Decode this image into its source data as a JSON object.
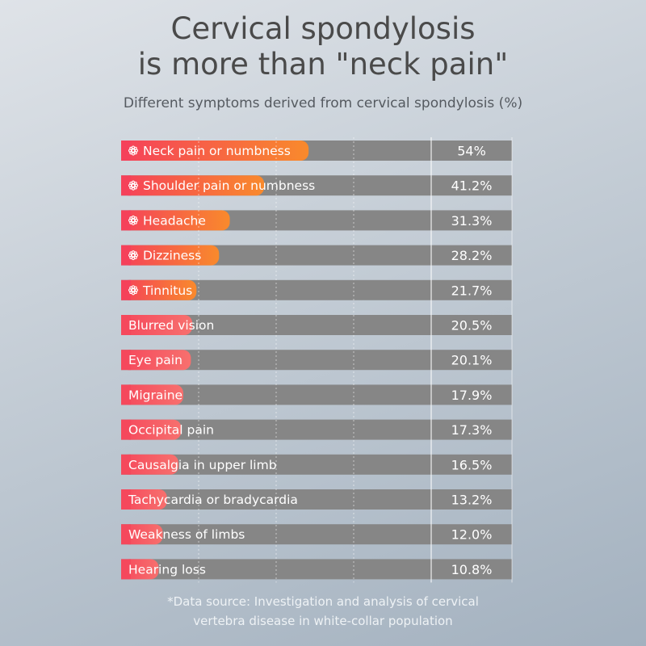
{
  "chart_data": {
    "type": "bar",
    "title_line1": "Cervical spondylosis",
    "title_line2": "is more than \"neck pain\"",
    "subtitle": "Different symptoms derived from cervical spondylosis (%)",
    "unit": "%",
    "xlim": [
      0,
      100
    ],
    "categories": [
      "Neck pain or numbness",
      "Shoulder pain or numbness",
      "Headache",
      "Dizziness",
      "Tinnitus",
      "Blurred vision",
      "Eye pain",
      "Migraine",
      "Occipital pain",
      "Causalgia in upper limb",
      "Tachycardia or bradycardia",
      "Weakness of limbs",
      "Hearing loss"
    ],
    "values": [
      54,
      41.2,
      31.3,
      28.2,
      21.7,
      20.5,
      20.1,
      17.9,
      17.3,
      16.5,
      13.2,
      12.0,
      10.8
    ],
    "value_labels": [
      "54%",
      "41.2%",
      "31.3%",
      "28.2%",
      "21.7%",
      "20.5%",
      "20.1%",
      "17.9%",
      "17.3%",
      "16.5%",
      "13.2%",
      "12.0%",
      "10.8%"
    ],
    "highlighted": [
      true,
      true,
      true,
      true,
      true,
      false,
      false,
      false,
      false,
      false,
      false,
      false,
      false
    ],
    "highlight_icon": "flower-icon",
    "colors": {
      "highlight_start": "#f5415a",
      "highlight_end": "#f98a2c",
      "normal_start": "#f5485c",
      "normal_end": "#f7706e",
      "track": "#868686"
    }
  },
  "footnote": {
    "line1": "*Data source: Investigation and analysis of cervical",
    "line2": "vertebra disease in white-collar population"
  }
}
